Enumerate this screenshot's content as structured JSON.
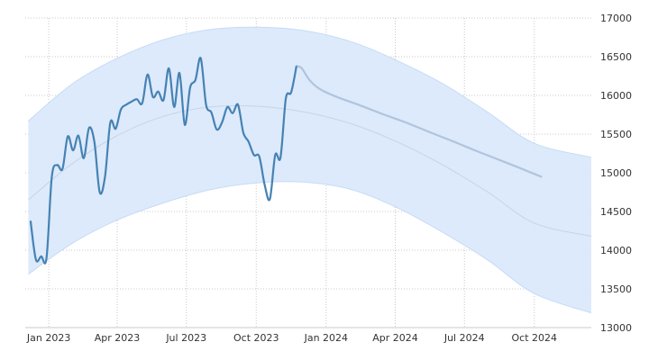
{
  "chart_data": {
    "type": "line",
    "title": "",
    "xlabel": "",
    "ylabel": "",
    "grid": true,
    "legend": "none",
    "x_tick_labels": [
      "Jan 2023",
      "Apr 2023",
      "Jul 2023",
      "Oct 2023",
      "Jan 2024",
      "Apr 2024",
      "Jul 2024",
      "Oct 2024"
    ],
    "x_tick_dates": [
      "2023-01-01",
      "2023-04-01",
      "2023-07-01",
      "2023-10-01",
      "2024-01-01",
      "2024-04-01",
      "2024-07-01",
      "2024-10-01"
    ],
    "xlim": [
      "2022-12-01",
      "2024-12-15"
    ],
    "y_ticks": [
      13000,
      13500,
      14000,
      14500,
      15000,
      15500,
      16000,
      16500,
      17000
    ],
    "ylim": [
      13000,
      17000
    ],
    "y_axis_side": "right",
    "colors": {
      "actual": "#4682b4",
      "forecast": "#b0c4de",
      "band_fill": "#dbe9fb",
      "band_edge": "#c6dbf6",
      "trend": "#c8d4e6"
    },
    "series": [
      {
        "role": "actual",
        "x": [
          "2022-12-08",
          "2022-12-15",
          "2022-12-22",
          "2022-12-29",
          "2023-01-05",
          "2023-01-12",
          "2023-01-19",
          "2023-01-26",
          "2023-02-02",
          "2023-02-09",
          "2023-02-16",
          "2023-02-23",
          "2023-03-02",
          "2023-03-09",
          "2023-03-16",
          "2023-03-23",
          "2023-03-30",
          "2023-04-06",
          "2023-04-13",
          "2023-04-20",
          "2023-04-27",
          "2023-05-04",
          "2023-05-11",
          "2023-05-18",
          "2023-05-25",
          "2023-06-01",
          "2023-06-08",
          "2023-06-15",
          "2023-06-22",
          "2023-06-29",
          "2023-07-06",
          "2023-07-13",
          "2023-07-20",
          "2023-07-27",
          "2023-08-03",
          "2023-08-10",
          "2023-08-17",
          "2023-08-24",
          "2023-08-31",
          "2023-09-07",
          "2023-09-14",
          "2023-09-21",
          "2023-09-28",
          "2023-10-05",
          "2023-10-12",
          "2023-10-19",
          "2023-10-26",
          "2023-11-02",
          "2023-11-09",
          "2023-11-16",
          "2023-11-23"
        ],
        "values": [
          14380,
          13880,
          13920,
          13900,
          14950,
          15100,
          15050,
          15470,
          15290,
          15480,
          15190,
          15580,
          15400,
          14750,
          14950,
          15650,
          15570,
          15820,
          15880,
          15920,
          15950,
          15900,
          16270,
          15980,
          16050,
          15940,
          16350,
          15850,
          16290,
          15620,
          16100,
          16200,
          16480,
          15880,
          15780,
          15560,
          15650,
          15850,
          15770,
          15880,
          15520,
          15400,
          15230,
          15210,
          14850,
          14660,
          15230,
          15200,
          15960,
          16040,
          16380
        ]
      },
      {
        "role": "forecast",
        "x": [
          "2023-11-23",
          "2023-11-30",
          "2023-12-10",
          "2023-12-24",
          "2024-01-15",
          "2024-02-15",
          "2024-03-15",
          "2024-04-15",
          "2024-05-15",
          "2024-06-15",
          "2024-07-15",
          "2024-08-15",
          "2024-09-15",
          "2024-10-10"
        ],
        "values": [
          16380,
          16350,
          16200,
          16080,
          15980,
          15870,
          15760,
          15650,
          15530,
          15410,
          15290,
          15170,
          15050,
          14950
        ]
      },
      {
        "role": "trend",
        "x": [
          "2022-12-05",
          "2023-02-01",
          "2023-04-01",
          "2023-06-01",
          "2023-08-01",
          "2023-10-01",
          "2023-12-01",
          "2024-02-01",
          "2024-04-01",
          "2024-06-01",
          "2024-08-01",
          "2024-10-01",
          "2024-12-15"
        ],
        "values": [
          14650,
          15120,
          15480,
          15730,
          15850,
          15860,
          15790,
          15640,
          15410,
          15110,
          14750,
          14350,
          14180
        ]
      }
    ],
    "band": {
      "x": [
        "2022-12-05",
        "2023-02-01",
        "2023-04-01",
        "2023-06-01",
        "2023-08-01",
        "2023-10-01",
        "2023-12-01",
        "2024-02-01",
        "2024-04-01",
        "2024-06-01",
        "2024-08-01",
        "2024-10-01",
        "2024-12-15"
      ],
      "upper": [
        15670,
        16150,
        16480,
        16720,
        16850,
        16880,
        16840,
        16700,
        16460,
        16160,
        15780,
        15380,
        15200
      ],
      "lower": [
        13690,
        14090,
        14390,
        14610,
        14780,
        14870,
        14880,
        14790,
        14560,
        14240,
        13870,
        13440,
        13190
      ]
    }
  }
}
